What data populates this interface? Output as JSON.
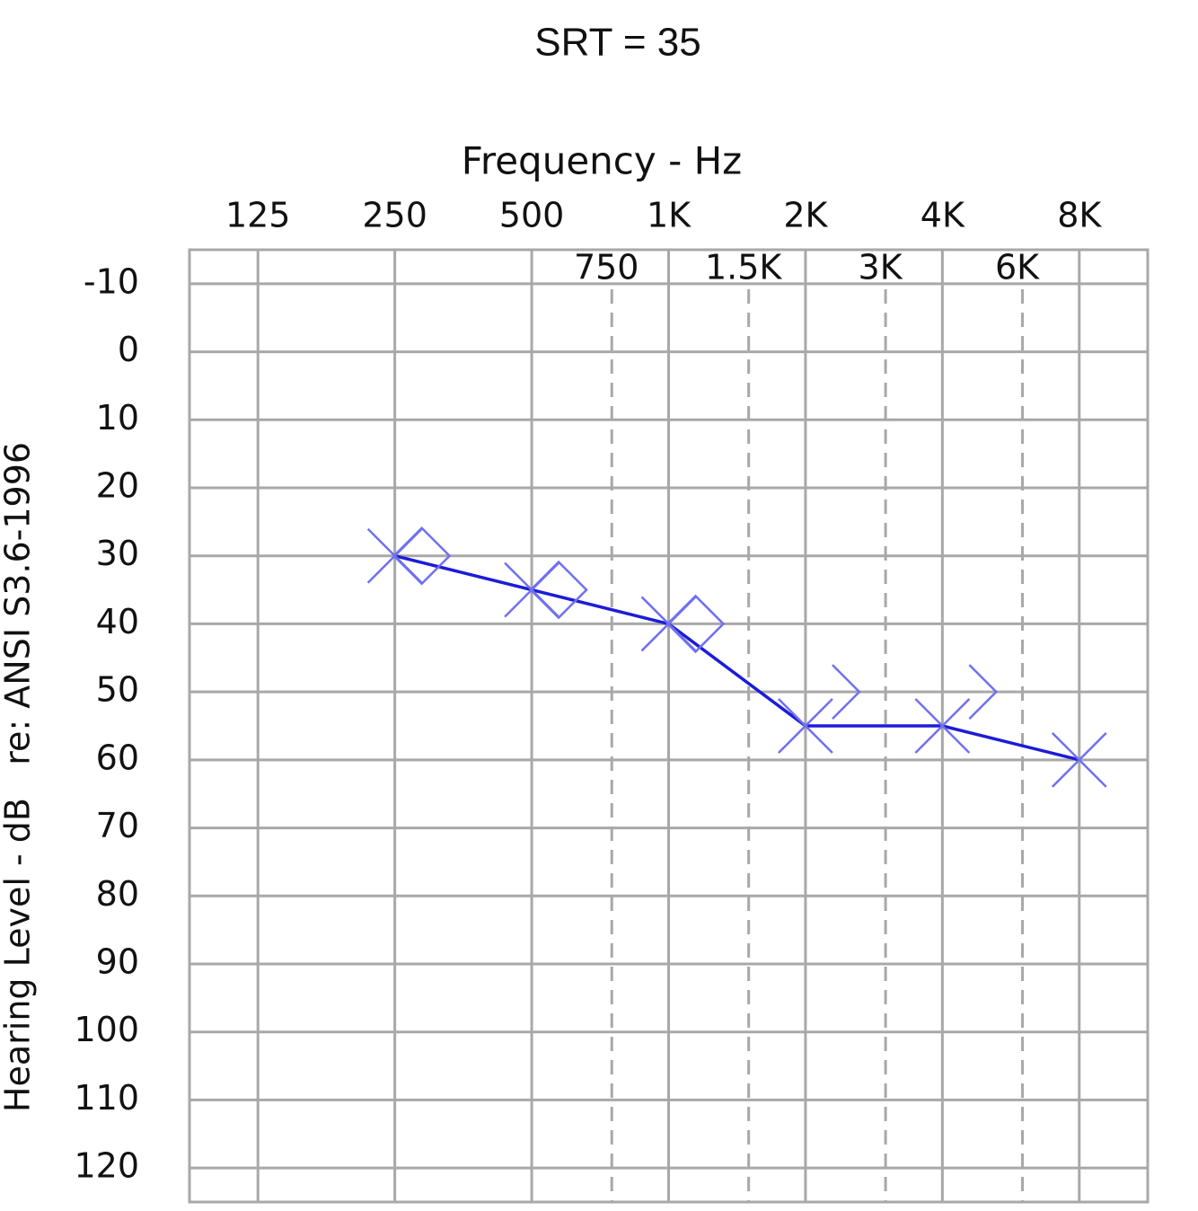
{
  "chart_data": {
    "type": "audiogram",
    "title": "SRT = 35",
    "x_label": "Frequency - Hz",
    "y_label": "Hearing Level - dB   re: ANSI S3.6-1996",
    "xscale": "log",
    "xlim": [
      88.39,
      11313.7
    ],
    "xticks": [
      125,
      250,
      500,
      {
        "value": 1000,
        "label": "1K"
      },
      {
        "value": 2000,
        "label": "2K"
      },
      {
        "value": 4000,
        "label": "4K"
      },
      {
        "value": 8000,
        "label": "8K"
      }
    ],
    "xticks_minor": [
      750,
      {
        "value": 1500,
        "label": "1.5K"
      },
      {
        "value": 3000,
        "label": "3K"
      },
      {
        "value": 6000,
        "label": "6K"
      }
    ],
    "ylim": [
      -15,
      125
    ],
    "y_reversed": true,
    "yticks": [
      -10,
      0,
      10,
      20,
      30,
      40,
      50,
      60,
      70,
      80,
      90,
      100,
      110,
      120
    ],
    "grid": true,
    "grid_color": "#a8a8a8",
    "series": [
      {
        "marker": "x",
        "color": "#7070f0",
        "line_color": "#1c1cd8",
        "x": [
          250,
          500,
          1000,
          2000,
          4000,
          8000
        ],
        "values": [
          30,
          35,
          40,
          55,
          55,
          60
        ]
      },
      {
        "marker": "diamond",
        "color": "#7070f0",
        "x": [
          250,
          500,
          1000
        ],
        "values": [
          30,
          35,
          40
        ]
      },
      {
        "marker": "bracket",
        "color": "#7070f0",
        "x": [
          2000,
          4000
        ],
        "values": [
          50,
          50
        ]
      }
    ]
  }
}
